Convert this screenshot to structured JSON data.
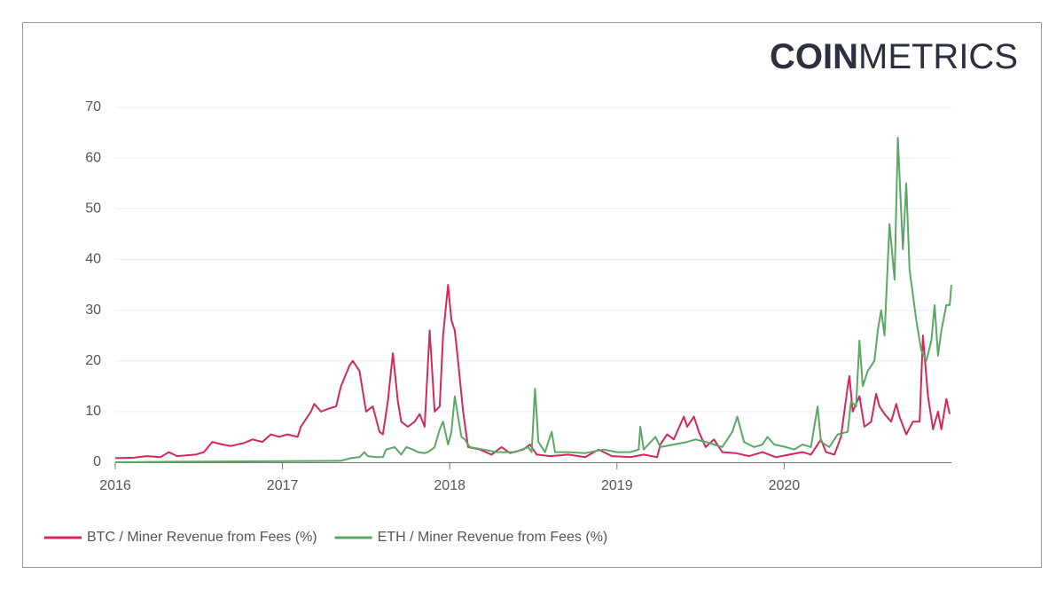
{
  "logo": {
    "bold": "COIN",
    "light": "METRICS"
  },
  "chart_data": {
    "type": "line",
    "xlim": [
      2016,
      2021
    ],
    "xticks": [
      2016,
      2017,
      2018,
      2019,
      2020
    ],
    "ylim": [
      0,
      70
    ],
    "yticks": [
      0,
      10,
      20,
      30,
      40,
      50,
      60,
      70
    ],
    "grid": true,
    "legend": "bottom-left",
    "series": [
      {
        "name": "BTC / Miner Revenue from Fees (%)",
        "color": "#d3285a",
        "x": [
          2016.0,
          2016.11,
          2016.19,
          2016.27,
          2016.32,
          2016.37,
          2016.48,
          2016.53,
          2016.58,
          2016.64,
          2016.69,
          2016.77,
          2016.82,
          2016.88,
          2016.93,
          2016.98,
          2017.03,
          2017.09,
          2017.11,
          2017.17,
          2017.19,
          2017.23,
          2017.27,
          2017.32,
          2017.35,
          2017.4,
          2017.42,
          2017.46,
          2017.5,
          2017.54,
          2017.58,
          2017.6,
          2017.63,
          2017.66,
          2017.69,
          2017.71,
          2017.75,
          2017.79,
          2017.82,
          2017.85,
          2017.88,
          2017.91,
          2017.94,
          2017.96,
          2017.99,
          2018.01,
          2018.03,
          2018.05,
          2018.08,
          2018.11,
          2018.18,
          2018.25,
          2018.31,
          2018.36,
          2018.44,
          2018.48,
          2018.52,
          2018.6,
          2018.71,
          2018.81,
          2018.89,
          2018.97,
          2019.08,
          2019.16,
          2019.24,
          2019.26,
          2019.3,
          2019.34,
          2019.4,
          2019.42,
          2019.46,
          2019.49,
          2019.53,
          2019.58,
          2019.63,
          2019.71,
          2019.79,
          2019.87,
          2019.95,
          2020.03,
          2020.11,
          2020.16,
          2020.22,
          2020.25,
          2020.3,
          2020.34,
          2020.38,
          2020.39,
          2020.41,
          2020.45,
          2020.48,
          2020.52,
          2020.55,
          2020.57,
          2020.6,
          2020.64,
          2020.67,
          2020.69,
          2020.73,
          2020.77,
          2020.81,
          2020.83,
          2020.86,
          2020.89,
          2020.92,
          2020.94,
          2020.97,
          2020.99
        ],
        "values": [
          0.8,
          0.9,
          1.2,
          1.0,
          2.0,
          1.2,
          1.5,
          2.0,
          4.0,
          3.5,
          3.2,
          3.8,
          4.5,
          4.0,
          5.5,
          5.0,
          5.5,
          5.0,
          7,
          10,
          11.5,
          10,
          10.5,
          11,
          15,
          19,
          20,
          18,
          10,
          11,
          6,
          5.5,
          12,
          21.5,
          12,
          8,
          7,
          8,
          9.5,
          7,
          26,
          10,
          11,
          25,
          35,
          28,
          26,
          20,
          10,
          3,
          2.5,
          1.5,
          3,
          1.8,
          2.5,
          3.5,
          1.5,
          1.2,
          1.5,
          1.0,
          2.5,
          1.2,
          1.0,
          1.5,
          1.0,
          3.5,
          5.5,
          4.5,
          9,
          7,
          9,
          6,
          3,
          4.5,
          2,
          1.8,
          1.2,
          2.0,
          1.0,
          1.5,
          2,
          1.5,
          4.5,
          2,
          1.5,
          5,
          15,
          17,
          10,
          13,
          7,
          8,
          13.5,
          11,
          9.5,
          8,
          11.5,
          9,
          5.5,
          8,
          8,
          25,
          13,
          6.5,
          10,
          6.5,
          12.5,
          9.5
        ]
      },
      {
        "name": "ETH / Miner Revenue from Fees (%)",
        "color": "#5aa863",
        "x": [
          2016.0,
          2016.37,
          2016.9,
          2017.35,
          2017.41,
          2017.46,
          2017.49,
          2017.51,
          2017.56,
          2017.6,
          2017.62,
          2017.67,
          2017.71,
          2017.74,
          2017.78,
          2017.81,
          2017.85,
          2017.87,
          2017.91,
          2017.94,
          2017.96,
          2017.99,
          2018.01,
          2018.03,
          2018.05,
          2018.07,
          2018.09,
          2018.12,
          2018.2,
          2018.28,
          2018.39,
          2018.47,
          2018.49,
          2018.51,
          2018.53,
          2018.57,
          2018.61,
          2018.63,
          2018.71,
          2018.81,
          2018.92,
          2019.0,
          2019.08,
          2019.13,
          2019.14,
          2019.16,
          2019.23,
          2019.26,
          2019.34,
          2019.42,
          2019.47,
          2019.53,
          2019.58,
          2019.63,
          2019.69,
          2019.72,
          2019.76,
          2019.82,
          2019.87,
          2019.9,
          2019.94,
          2020.01,
          2020.06,
          2020.11,
          2020.16,
          2020.2,
          2020.22,
          2020.27,
          2020.32,
          2020.38,
          2020.4,
          2020.43,
          2020.45,
          2020.47,
          2020.5,
          2020.54,
          2020.56,
          2020.58,
          2020.6,
          2020.63,
          2020.66,
          2020.68,
          2020.71,
          2020.73,
          2020.75,
          2020.79,
          2020.82,
          2020.85,
          2020.88,
          2020.9,
          2020.92,
          2020.94,
          2020.97,
          2020.99,
          2021.0
        ],
        "values": [
          0,
          0.1,
          0.2,
          0.3,
          0.8,
          1.0,
          2.0,
          1.2,
          1.0,
          1.0,
          2.5,
          3.0,
          1.5,
          3.0,
          2.5,
          2.0,
          1.8,
          2.0,
          3.0,
          6.5,
          8,
          3.5,
          6,
          13,
          9,
          5,
          4.5,
          3,
          2.5,
          2.0,
          2.0,
          3.0,
          2.0,
          14.5,
          4,
          2.0,
          6,
          2,
          2.0,
          1.8,
          2.5,
          2.0,
          2.0,
          2.5,
          7,
          2.5,
          5,
          3,
          3.5,
          4,
          4.5,
          4,
          3.5,
          3,
          6,
          9,
          4,
          3,
          3.5,
          5,
          3.5,
          3,
          2.5,
          3.5,
          3,
          11,
          4,
          3,
          5.5,
          6,
          12,
          11,
          24,
          15,
          18,
          20,
          26,
          30,
          25,
          47,
          36,
          64,
          42,
          55,
          38,
          28,
          22,
          20,
          24,
          31,
          21,
          26,
          31,
          31,
          35
        ]
      }
    ]
  }
}
